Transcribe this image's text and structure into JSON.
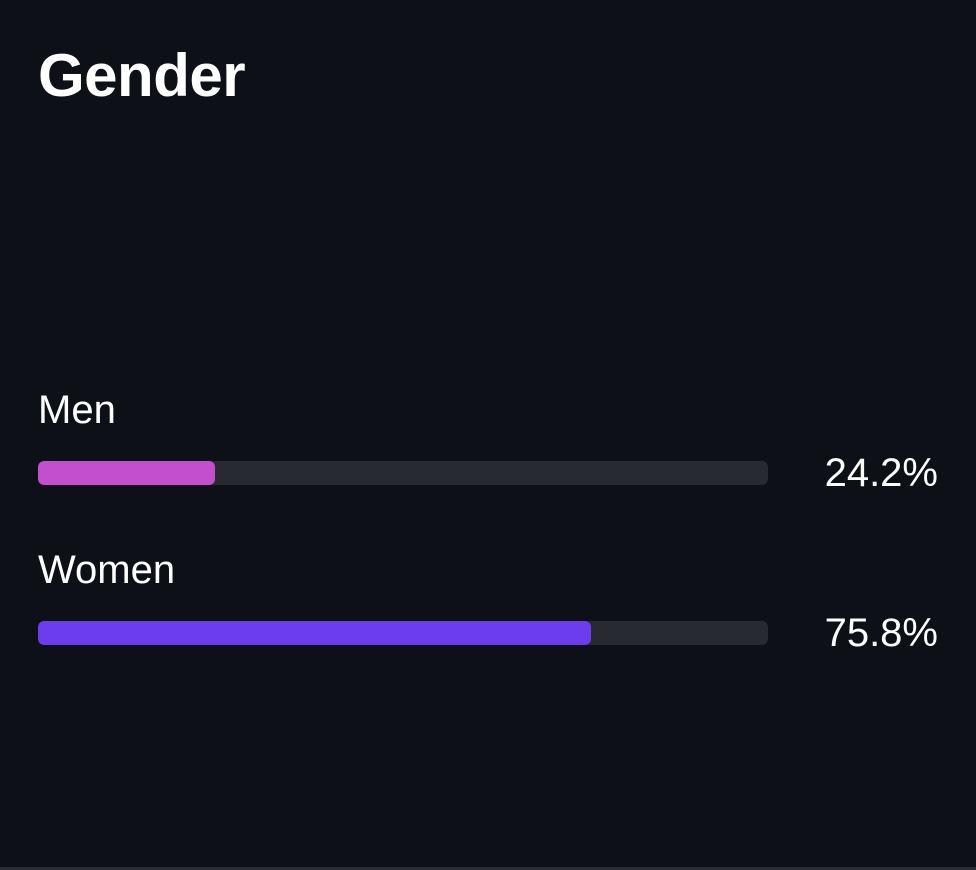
{
  "card": {
    "title": "Gender"
  },
  "rows": [
    {
      "label": "Men",
      "value_text": "24.2%",
      "percent": 24.2,
      "color": "#c44fce"
    },
    {
      "label": "Women",
      "value_text": "75.8%",
      "percent": 75.8,
      "color": "#6c3cef"
    }
  ],
  "colors": {
    "background": "#0d1016",
    "track": "#272a31",
    "text": "#ffffff"
  }
}
